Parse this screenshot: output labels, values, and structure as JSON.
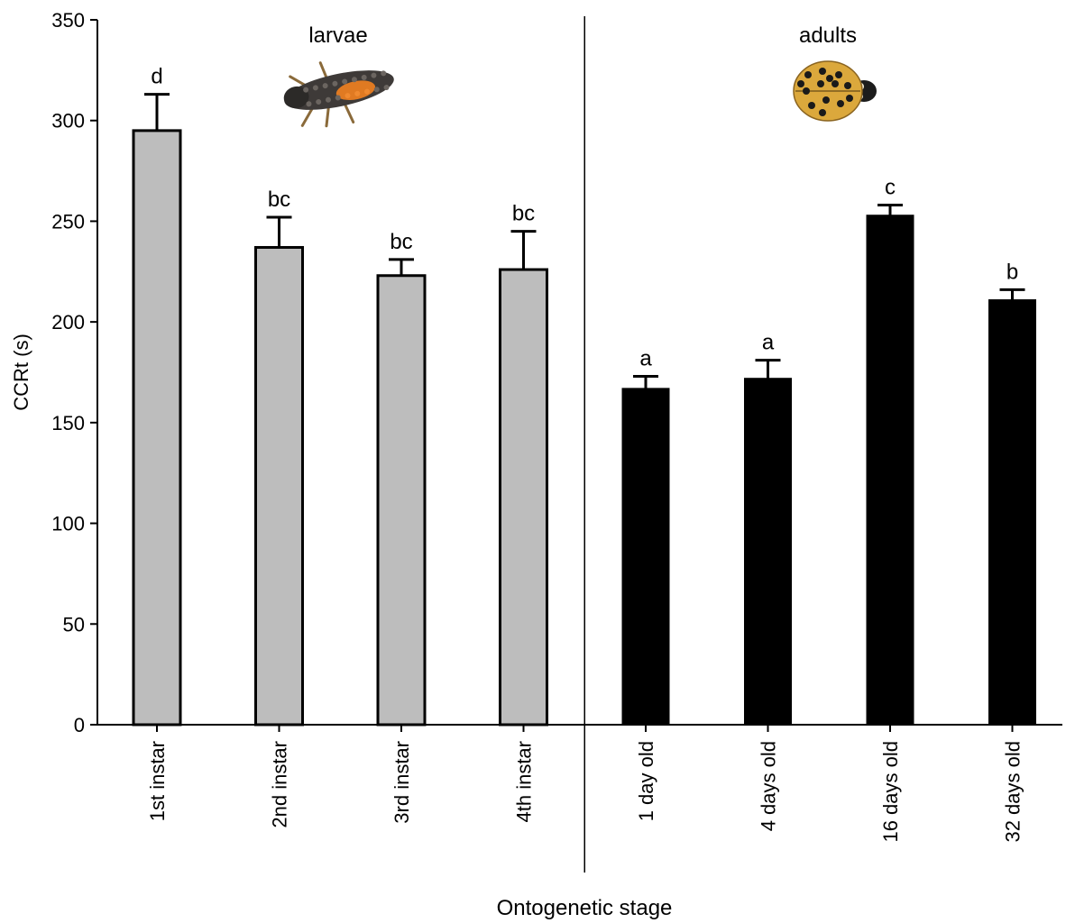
{
  "chart_data": {
    "type": "bar",
    "xlabel": "Ontogenetic stage",
    "ylabel": "CCRt (s)",
    "ylim": [
      0,
      350
    ],
    "yticks": [
      0,
      50,
      100,
      150,
      200,
      250,
      300,
      350
    ],
    "grid": false,
    "groups": [
      {
        "label": "larvae",
        "icon": "ladybird-larva-image",
        "color": "#bdbdbd"
      },
      {
        "label": "adults",
        "icon": "ladybird-adult-image",
        "color": "#000000"
      }
    ],
    "categories": [
      "1st instar",
      "2nd instar",
      "3rd instar",
      "4th instar",
      "1 day old",
      "4 days old",
      "16 days old",
      "32 days old"
    ],
    "category_group": [
      0,
      0,
      0,
      0,
      1,
      1,
      1,
      1
    ],
    "values": [
      295,
      237,
      223,
      226,
      167,
      172,
      253,
      211
    ],
    "errors": [
      18,
      15,
      8,
      19,
      6,
      9,
      5,
      5
    ],
    "significance_letters": [
      "d",
      "bc",
      "bc",
      "bc",
      "a",
      "a",
      "c",
      "b"
    ]
  }
}
